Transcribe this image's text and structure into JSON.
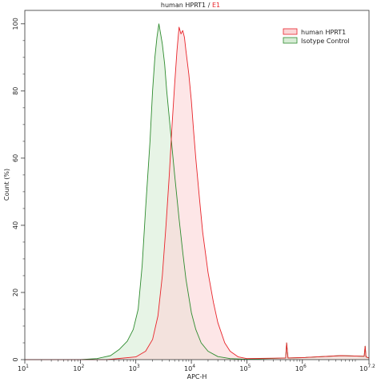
{
  "chart_data": {
    "type": "area",
    "title": {
      "prefix": "human HPRT1 / ",
      "suffix": "E1",
      "suffix_color": "#e8242a"
    },
    "xlabel": "APC-H",
    "ylabel": "Count (%)",
    "x_scale": "log10",
    "xlim": [
      10,
      15848932
    ],
    "ylim": [
      0,
      104
    ],
    "grid": false,
    "legend_position": "top-right",
    "x_ticks": [
      {
        "value": 10,
        "base": "10",
        "exp": "1"
      },
      {
        "value": 100,
        "base": "10",
        "exp": "2"
      },
      {
        "value": 1000,
        "base": "10",
        "exp": "3"
      },
      {
        "value": 10000,
        "base": "10",
        "exp": "4"
      },
      {
        "value": 100000,
        "base": "10",
        "exp": "5"
      },
      {
        "value": 1000000,
        "base": "10",
        "exp": "6"
      },
      {
        "value": 15848932,
        "base": "10",
        "exp": "7.2"
      }
    ],
    "y_ticks": [
      0,
      20,
      40,
      60,
      80,
      100
    ],
    "series": [
      {
        "name": "Isotype Control",
        "line_color": "#2e8b2e",
        "fill_color": "#d7ecd5",
        "x": [
          10,
          100,
          200,
          350,
          500,
          700,
          900,
          1100,
          1300,
          1500,
          1800,
          2000,
          2200,
          2400,
          2600,
          2800,
          3000,
          3300,
          3600,
          4000,
          4500,
          5000,
          6000,
          7000,
          8000,
          10000,
          12000,
          15000,
          20000,
          30000,
          50000,
          100000,
          500000,
          520000,
          550000,
          1000000,
          5000000,
          13000000,
          13500000,
          14000000,
          15848932
        ],
        "y": [
          0,
          0,
          0.3,
          1.2,
          3,
          5.5,
          9,
          15,
          28,
          45,
          65,
          80,
          90,
          96,
          100,
          97,
          94,
          88,
          80,
          72,
          63,
          55,
          42,
          32,
          24,
          14,
          9,
          5,
          2.5,
          0.9,
          0.3,
          0.1,
          0.5,
          5,
          0.5,
          0.6,
          1.2,
          1,
          4,
          0.8,
          0.5
        ]
      },
      {
        "name": "human HPRT1",
        "line_color": "#e8242a",
        "fill_color": "#fbd6d7",
        "x": [
          10,
          300,
          1000,
          1500,
          2000,
          2500,
          3000,
          3500,
          4000,
          4500,
          5000,
          5500,
          6000,
          6500,
          7000,
          7500,
          8000,
          9000,
          10000,
          11000,
          12000,
          14000,
          16000,
          20000,
          25000,
          30000,
          40000,
          50000,
          70000,
          100000,
          500000,
          520000,
          550000,
          1000000,
          5000000,
          13000000,
          13500000,
          14000000,
          15848932
        ],
        "y": [
          0,
          0,
          0.8,
          2.5,
          6,
          13,
          25,
          40,
          55,
          70,
          82,
          92,
          99,
          97,
          98,
          96,
          92,
          85,
          77,
          68,
          60,
          48,
          38,
          26,
          17,
          11,
          5,
          2.5,
          0.8,
          0.3,
          0.5,
          5,
          0.5,
          0.6,
          1.2,
          1,
          4,
          0.8,
          0.5
        ]
      }
    ]
  }
}
